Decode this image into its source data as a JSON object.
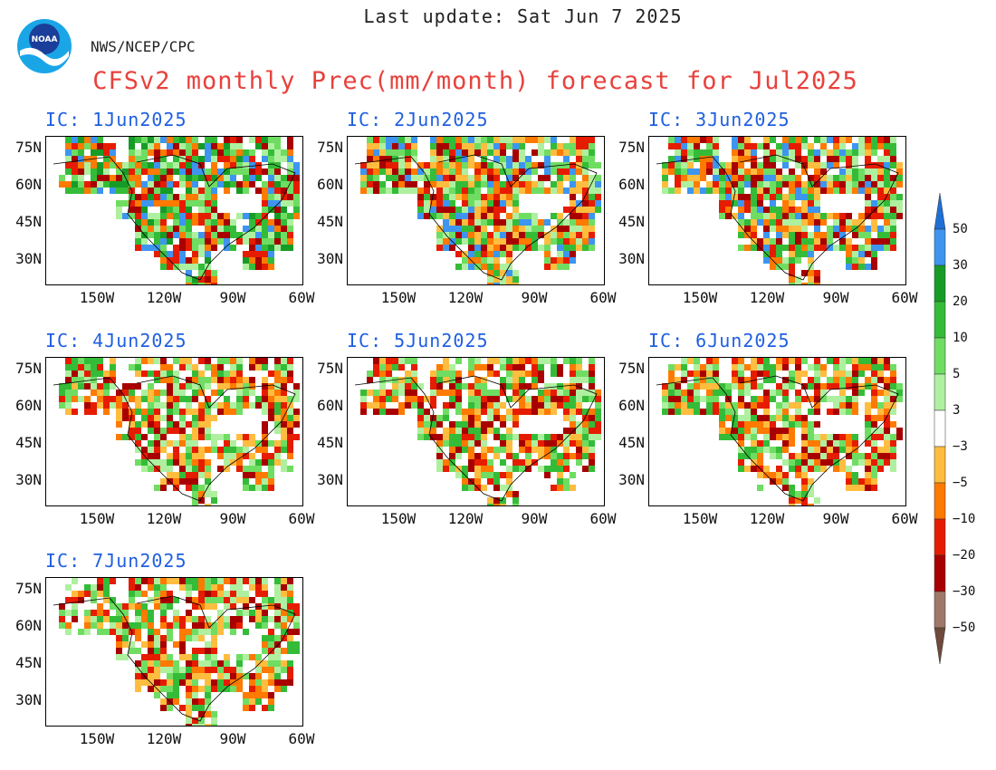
{
  "header": {
    "last_update": "Last update: Sat Jun 7 2025",
    "agency": "NWS/NCEP/CPC",
    "title": "CFSv2 monthly Prec(mm/month) forecast for Jul2025",
    "logo_text": "NOAA"
  },
  "axes": {
    "lat_labels": [
      "75N",
      "60N",
      "45N",
      "30N"
    ],
    "lon_labels": [
      "150W",
      "120W",
      "90W",
      "60W"
    ]
  },
  "panels": [
    {
      "title": "IC: 1Jun2025",
      "tone": "wet"
    },
    {
      "title": "IC: 2Jun2025",
      "tone": "mixed"
    },
    {
      "title": "IC: 3Jun2025",
      "tone": "mixed"
    },
    {
      "title": "IC: 4Jun2025",
      "tone": "dry"
    },
    {
      "title": "IC: 5Jun2025",
      "tone": "dry"
    },
    {
      "title": "IC: 6Jun2025",
      "tone": "dry"
    },
    {
      "title": "IC: 7Jun2025",
      "tone": "dry"
    }
  ],
  "colorbar": {
    "labels": [
      "50",
      "30",
      "20",
      "10",
      "5",
      "3",
      "−3",
      "−5",
      "−10",
      "−20",
      "−30",
      "−50"
    ],
    "colors": [
      "#1f6fd6",
      "#3d95f0",
      "#169c26",
      "#34bc38",
      "#6fdd62",
      "#aef0a0",
      "#ffffff",
      "#ffbd40",
      "#ff7a00",
      "#e61c00",
      "#a80000",
      "#a0786a",
      "#6e4a3c"
    ]
  }
}
